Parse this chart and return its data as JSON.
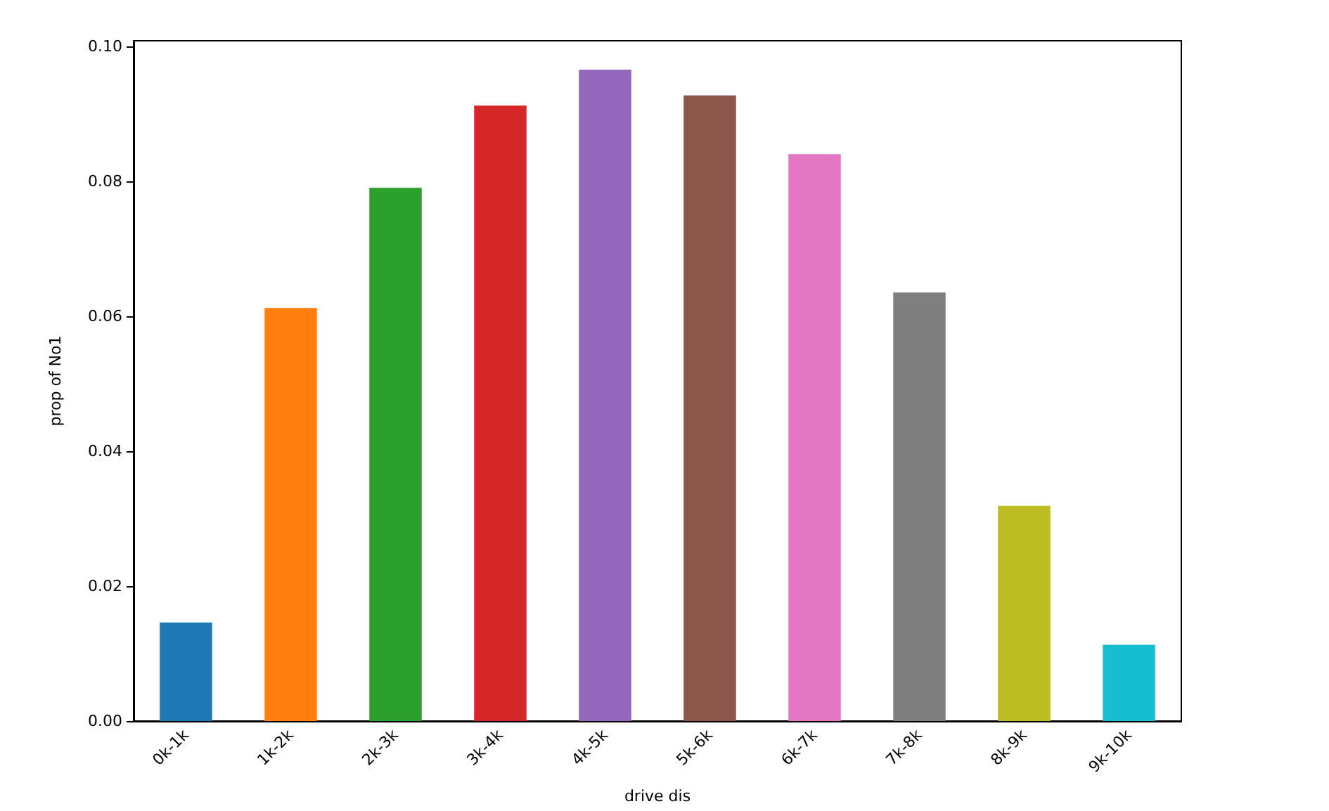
{
  "chart_data": {
    "type": "bar",
    "xlabel": "drive dis",
    "ylabel": "prop of No1",
    "categories": [
      "0k-1k",
      "1k-2k",
      "2k-3k",
      "3k-4k",
      "4k-5k",
      "5k-6k",
      "6k-7k",
      "7k-8k",
      "8k-9k",
      "9k-10k"
    ],
    "values": [
      0.0146,
      0.0612,
      0.079,
      0.0912,
      0.0965,
      0.0927,
      0.084,
      0.0635,
      0.0319,
      0.0113
    ],
    "colors": [
      "#1f77b4",
      "#ff7f0e",
      "#2ca02c",
      "#d62728",
      "#9467bd",
      "#8c564b",
      "#e377c2",
      "#7f7f7f",
      "#bcbd22",
      "#17becf"
    ],
    "ylim": [
      0,
      0.1008
    ],
    "yticks": [
      {
        "value": 0,
        "label": "0.00"
      },
      {
        "value": 0.02,
        "label": "0.02"
      },
      {
        "value": 0.04,
        "label": "0.04"
      },
      {
        "value": 0.06,
        "label": "0.06"
      },
      {
        "value": 0.08,
        "label": "0.08"
      },
      {
        "value": 0.1,
        "label": "0.10"
      }
    ],
    "grid": false
  }
}
